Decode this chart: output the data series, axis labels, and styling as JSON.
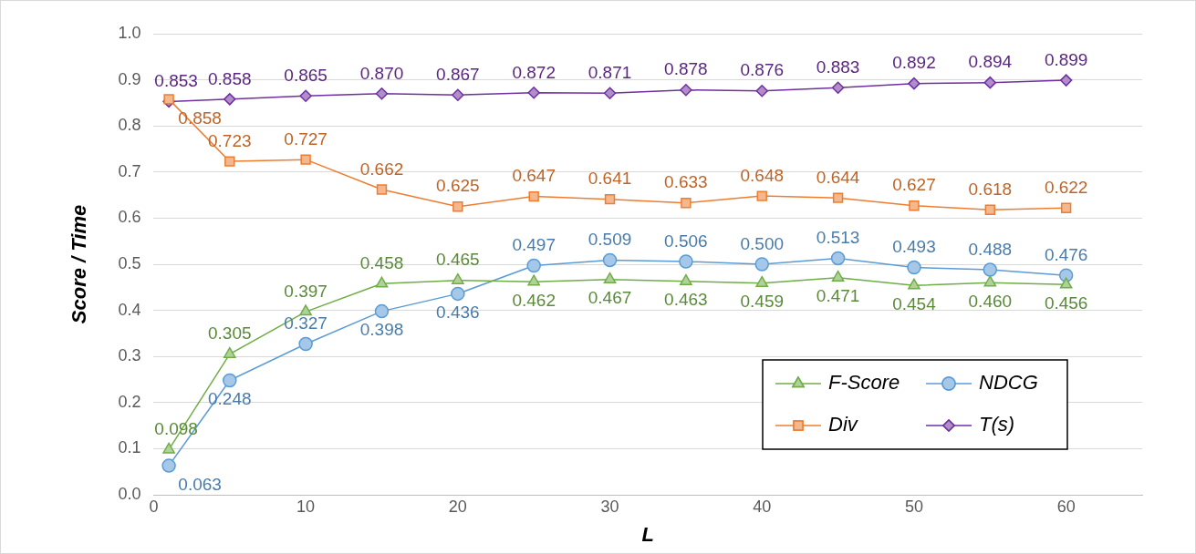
{
  "chart_data": {
    "type": "line",
    "xlabel": "L",
    "ylabel": "Score / Time",
    "x": [
      1,
      5,
      10,
      15,
      20,
      25,
      30,
      35,
      40,
      45,
      50,
      55,
      60
    ],
    "series": [
      {
        "name": "F-Score",
        "color": "#70ad47",
        "marker": "triangle",
        "values": [
          0.098,
          0.305,
          0.397,
          0.458,
          0.465,
          0.462,
          0.467,
          0.463,
          0.459,
          0.471,
          0.454,
          0.46,
          0.456
        ],
        "value_labels": [
          "0.098",
          "0.305",
          "0.397",
          "0.458",
          "0.465",
          "0.462",
          "0.467",
          "0.463",
          "0.459",
          "0.471",
          "0.454",
          "0.460",
          "0.456"
        ]
      },
      {
        "name": "NDCG",
        "color": "#5b9bd5",
        "marker": "circle",
        "values": [
          0.063,
          0.248,
          0.327,
          0.398,
          0.436,
          0.497,
          0.509,
          0.506,
          0.5,
          0.513,
          0.493,
          0.488,
          0.476
        ],
        "value_labels": [
          "0.063",
          "0.248",
          "0.327",
          "0.398",
          "0.436",
          "0.497",
          "0.509",
          "0.506",
          "0.500",
          "0.513",
          "0.493",
          "0.488",
          "0.476"
        ]
      },
      {
        "name": "Div",
        "color": "#ed7d31",
        "marker": "square",
        "values": [
          0.858,
          0.723,
          0.727,
          0.662,
          0.625,
          0.647,
          0.641,
          0.633,
          0.648,
          0.644,
          0.627,
          0.618,
          0.622
        ],
        "value_labels": [
          "0.858",
          "0.723",
          "0.727",
          "0.662",
          "0.625",
          "0.647",
          "0.641",
          "0.633",
          "0.648",
          "0.644",
          "0.627",
          "0.618",
          "0.622"
        ]
      },
      {
        "name": "T(s)",
        "color": "#7030a0",
        "marker": "diamond",
        "values": [
          0.853,
          0.858,
          0.865,
          0.87,
          0.867,
          0.872,
          0.871,
          0.878,
          0.876,
          0.883,
          0.892,
          0.894,
          0.899
        ],
        "value_labels": [
          "0.853",
          "0.858",
          "0.865",
          "0.870",
          "0.867",
          "0.872",
          "0.871",
          "0.878",
          "0.876",
          "0.883",
          "0.892",
          "0.894",
          "0.899"
        ]
      }
    ],
    "xlim": [
      0,
      65
    ],
    "xticks": [
      0,
      10,
      20,
      30,
      40,
      50,
      60
    ],
    "ylim": [
      0,
      1
    ],
    "yticks": [
      {
        "value": 0,
        "label": "0.0"
      },
      {
        "value": 0.1,
        "label": "0.1"
      },
      {
        "value": 0.2,
        "label": "0.2"
      },
      {
        "value": 0.3,
        "label": "0.3"
      },
      {
        "value": 0.4,
        "label": "0.4"
      },
      {
        "value": 0.5,
        "label": "0.5"
      },
      {
        "value": 0.6,
        "label": "0.6"
      },
      {
        "value": 0.7,
        "label": "0.7"
      },
      {
        "value": 0.8,
        "label": "0.8"
      },
      {
        "value": 0.9,
        "label": "0.9"
      },
      {
        "value": 1,
        "label": "1.0"
      }
    ],
    "grid": "y",
    "legend": "bottom right"
  }
}
